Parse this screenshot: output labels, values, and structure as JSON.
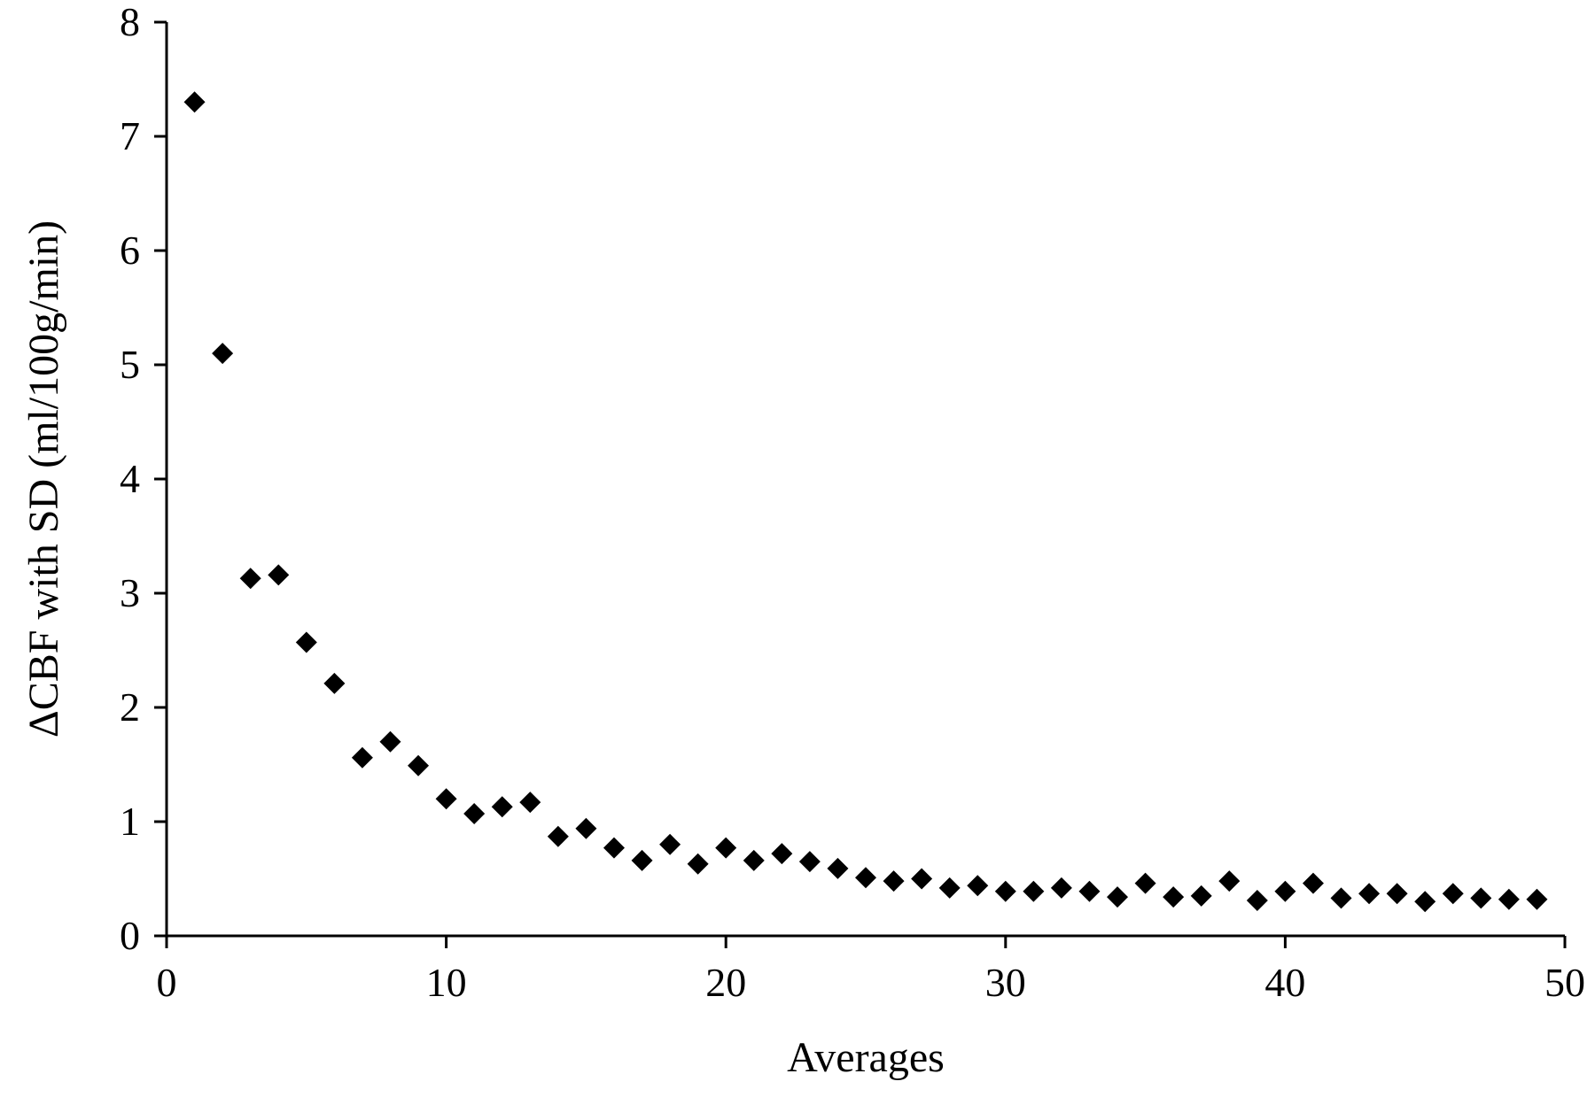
{
  "chart_data": {
    "type": "scatter",
    "xlabel": "Averages",
    "ylabel": "ΔCBF with SD (ml/100g/min)",
    "xlim": [
      0,
      50
    ],
    "ylim": [
      0,
      8
    ],
    "xticks": [
      0,
      10,
      20,
      30,
      40,
      50
    ],
    "yticks": [
      0,
      1,
      2,
      3,
      4,
      5,
      6,
      7,
      8
    ],
    "grid": false,
    "marker": "diamond",
    "marker_color": "#000000",
    "series": [
      {
        "x": [
          1,
          2,
          3,
          4,
          5,
          6,
          7,
          8,
          9,
          10,
          11,
          12,
          13,
          14,
          15,
          16,
          17,
          18,
          19,
          20,
          21,
          22,
          23,
          24,
          25,
          26,
          27,
          28,
          29,
          30,
          31,
          32,
          33,
          34,
          35,
          36,
          37,
          38,
          39,
          40,
          41,
          42,
          43,
          44,
          45,
          46,
          47,
          48,
          49
        ],
        "y": [
          7.3,
          5.1,
          3.13,
          3.16,
          2.57,
          2.21,
          1.56,
          1.7,
          1.49,
          1.2,
          1.07,
          1.13,
          1.17,
          0.87,
          0.94,
          0.77,
          0.66,
          0.8,
          0.63,
          0.77,
          0.66,
          0.72,
          0.65,
          0.59,
          0.51,
          0.48,
          0.5,
          0.42,
          0.44,
          0.39,
          0.39,
          0.42,
          0.39,
          0.34,
          0.46,
          0.34,
          0.35,
          0.48,
          0.31,
          0.39,
          0.46,
          0.33,
          0.37,
          0.37,
          0.3,
          0.37,
          0.33,
          0.32,
          0.32
        ]
      }
    ]
  }
}
